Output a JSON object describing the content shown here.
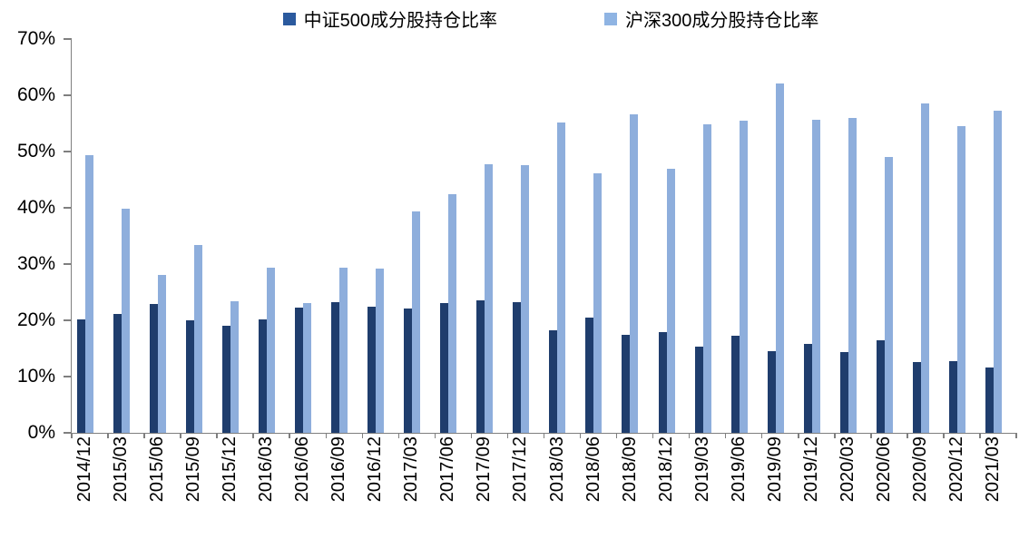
{
  "chart_data": {
    "type": "bar",
    "title": "",
    "xlabel": "",
    "ylabel": "",
    "ylim": [
      0,
      70
    ],
    "grid": false,
    "legend_position": "top-center",
    "axis_color": "#7f7f7f",
    "y_ticks": [
      {
        "value": 0,
        "label": "0%"
      },
      {
        "value": 10,
        "label": "10%"
      },
      {
        "value": 20,
        "label": "20%"
      },
      {
        "value": 30,
        "label": "30%"
      },
      {
        "value": 40,
        "label": "40%"
      },
      {
        "value": 50,
        "label": "50%"
      },
      {
        "value": 60,
        "label": "60%"
      },
      {
        "value": 70,
        "label": "70%"
      }
    ],
    "categories": [
      "2014/12",
      "2015/03",
      "2015/06",
      "2015/09",
      "2015/12",
      "2016/03",
      "2016/06",
      "2016/09",
      "2016/12",
      "2017/03",
      "2017/06",
      "2017/09",
      "2017/12",
      "2018/03",
      "2018/06",
      "2018/09",
      "2018/12",
      "2019/03",
      "2019/06",
      "2019/09",
      "2019/12",
      "2020/03",
      "2020/06",
      "2020/09",
      "2020/12",
      "2021/03"
    ],
    "series": [
      {
        "name": "中证500成分股持仓比率",
        "color": "#1f3d6d",
        "legend_marker_color": "#2b5a9e",
        "values": [
          20.1,
          21.1,
          22.9,
          20.0,
          19.0,
          20.1,
          22.3,
          23.2,
          22.4,
          22.1,
          23.0,
          23.6,
          23.2,
          18.3,
          20.5,
          17.5,
          17.9,
          15.4,
          17.2,
          14.5,
          15.8,
          14.4,
          16.5,
          12.6,
          12.8,
          11.7
        ]
      },
      {
        "name": "沪深300成分股持仓比率",
        "color": "#8eaedc",
        "legend_marker_color": "#8fb4e3",
        "values": [
          49.4,
          39.9,
          28.1,
          33.4,
          23.4,
          29.4,
          23.1,
          29.4,
          29.2,
          39.4,
          42.5,
          47.8,
          47.6,
          55.1,
          46.2,
          56.6,
          46.9,
          54.8,
          55.5,
          62.1,
          55.6,
          56.0,
          49.1,
          58.5,
          54.6,
          57.2
        ]
      }
    ]
  }
}
